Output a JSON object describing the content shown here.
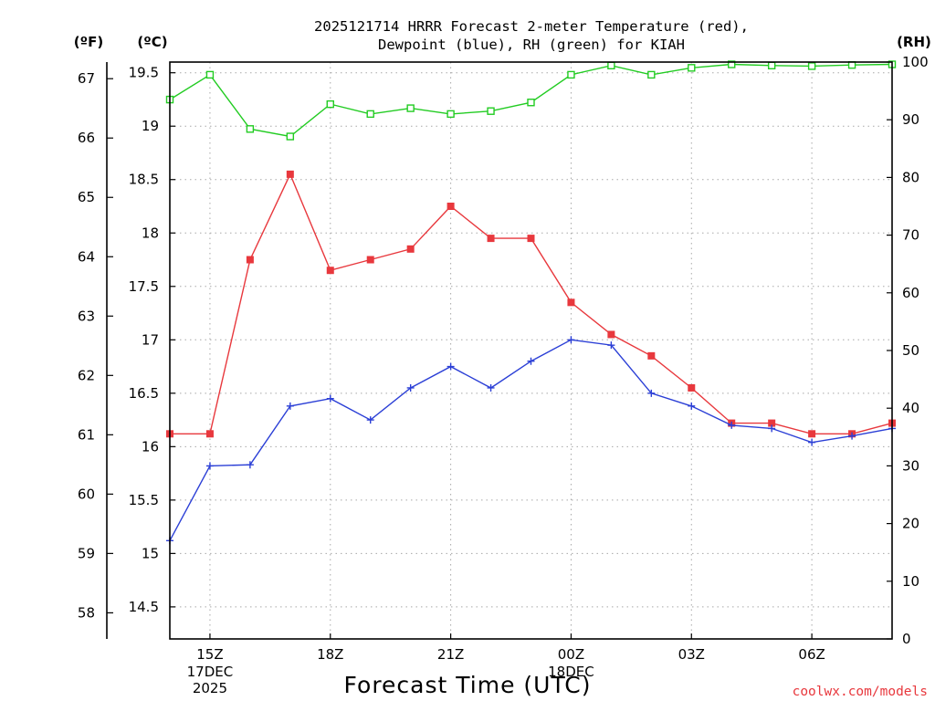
{
  "chart_data": {
    "type": "line",
    "title_lines": [
      "2025121714 HRRR Forecast 2-meter Temperature (red),",
      "Dewpoint (blue), RH (green) for KIAH"
    ],
    "xlabel": "Forecast Time (UTC)",
    "x_hours": [
      14,
      15,
      16,
      17,
      18,
      19,
      20,
      21,
      22,
      23,
      24,
      25,
      26,
      27,
      28,
      29,
      30,
      31,
      32
    ],
    "x_ticks": [
      {
        "hour": 15,
        "label": "15Z",
        "label2": "17DEC",
        "label3": "2025"
      },
      {
        "hour": 18,
        "label": "18Z"
      },
      {
        "hour": 21,
        "label": "21Z"
      },
      {
        "hour": 24,
        "label": "00Z",
        "label2": "18DEC"
      },
      {
        "hour": 27,
        "label": "03Z"
      },
      {
        "hour": 30,
        "label": "06Z"
      }
    ],
    "xlim": [
      14,
      32
    ],
    "y_celsius": {
      "unit_label": "(ºC)",
      "ylim": [
        14.2,
        19.6
      ],
      "ticks": [
        "14.5",
        "15",
        "15.5",
        "16",
        "16.5",
        "17",
        "17.5",
        "18",
        "18.5",
        "19",
        "19.5"
      ]
    },
    "y_fahrenheit": {
      "unit_label": "(ºF)",
      "ticks": [
        "58",
        "59",
        "60",
        "61",
        "62",
        "63",
        "64",
        "65",
        "66",
        "67"
      ]
    },
    "y_rh": {
      "unit_label": "(RH)",
      "ylim": [
        0,
        100
      ],
      "ticks": [
        "0",
        "10",
        "20",
        "30",
        "40",
        "50",
        "60",
        "70",
        "80",
        "90",
        "100"
      ]
    },
    "grid": true,
    "series": [
      {
        "name": "Temperature",
        "axis": "celsius",
        "color": "#e8383d",
        "marker": "filled-square",
        "values": [
          16.12,
          16.12,
          17.75,
          18.55,
          17.65,
          17.75,
          17.85,
          18.25,
          17.95,
          17.95,
          17.35,
          17.05,
          16.85,
          16.55,
          16.22,
          16.22,
          16.12,
          16.12,
          16.22
        ]
      },
      {
        "name": "Dewpoint",
        "axis": "celsius",
        "color": "#2b3fd6",
        "marker": "plus",
        "values": [
          15.12,
          15.82,
          15.83,
          16.38,
          16.45,
          16.25,
          16.55,
          16.75,
          16.55,
          16.8,
          17.0,
          16.95,
          16.5,
          16.38,
          16.2,
          16.17,
          16.04,
          16.1,
          16.17
        ]
      },
      {
        "name": "RH",
        "axis": "rh",
        "color": "#22cc22",
        "marker": "open-square",
        "values": [
          93.5,
          97.8,
          88.4,
          87.1,
          92.7,
          91.0,
          92.0,
          91.0,
          91.5,
          93.0,
          97.8,
          99.4,
          97.8,
          99.0,
          99.6,
          99.4,
          99.3,
          99.5,
          99.6
        ]
      }
    ]
  },
  "credit": "coolwx.com/models"
}
